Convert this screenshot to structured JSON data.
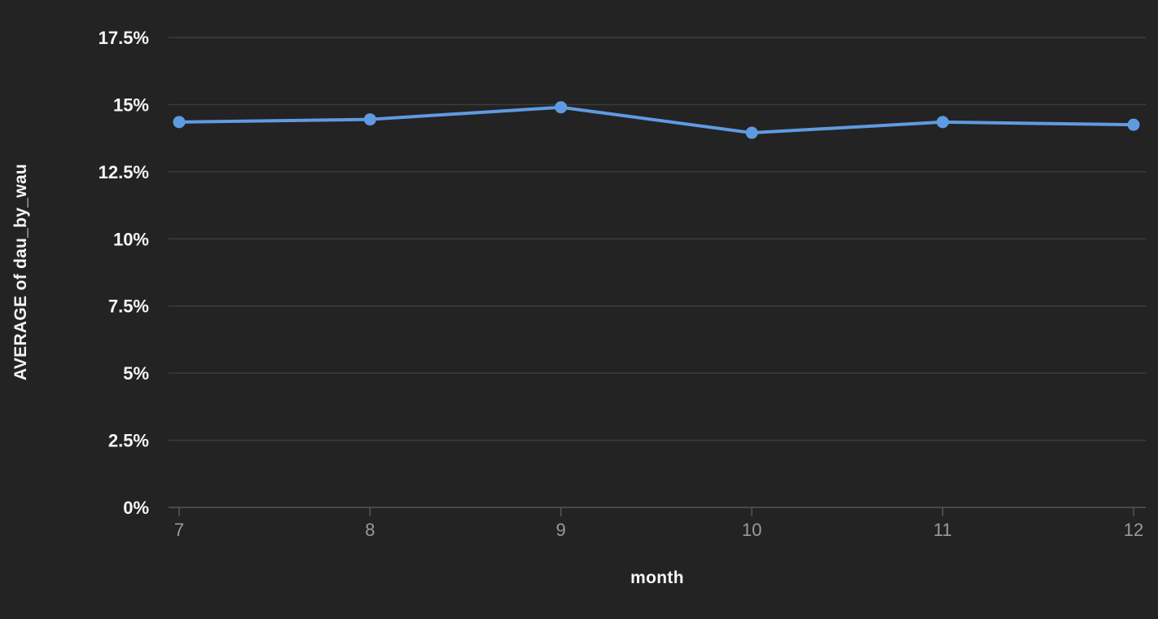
{
  "chart_data": {
    "type": "line",
    "title": "",
    "xlabel": "month",
    "ylabel": "AVERAGE of dau_by_wau",
    "x": [
      7,
      8,
      9,
      10,
      11,
      12
    ],
    "x_tick_labels": [
      "7",
      "8",
      "9",
      "10",
      "11",
      "12"
    ],
    "series": [
      {
        "name": "AVERAGE of dau_by_wau",
        "values": [
          14.35,
          14.45,
          14.9,
          13.95,
          14.35,
          14.25
        ]
      }
    ],
    "y_ticks": [
      0,
      2.5,
      5,
      7.5,
      10,
      12.5,
      15,
      17.5
    ],
    "y_tick_labels": [
      "0%",
      "2.5%",
      "5%",
      "7.5%",
      "10%",
      "12.5%",
      "15%",
      "17.5%"
    ],
    "ylim": [
      0,
      17.5
    ],
    "grid": "horizontal",
    "legend": "none",
    "colors": {
      "background": "#232323",
      "line": "#5f9be0",
      "marker": "#5f9be0",
      "gridline": "#3c3c3c",
      "axis_line": "#565656",
      "tick_mark": "#565656",
      "x_tick_label": "#9a9a9a",
      "y_tick_label": "#f5f5f5",
      "axis_title": "#f5f5f5"
    }
  }
}
